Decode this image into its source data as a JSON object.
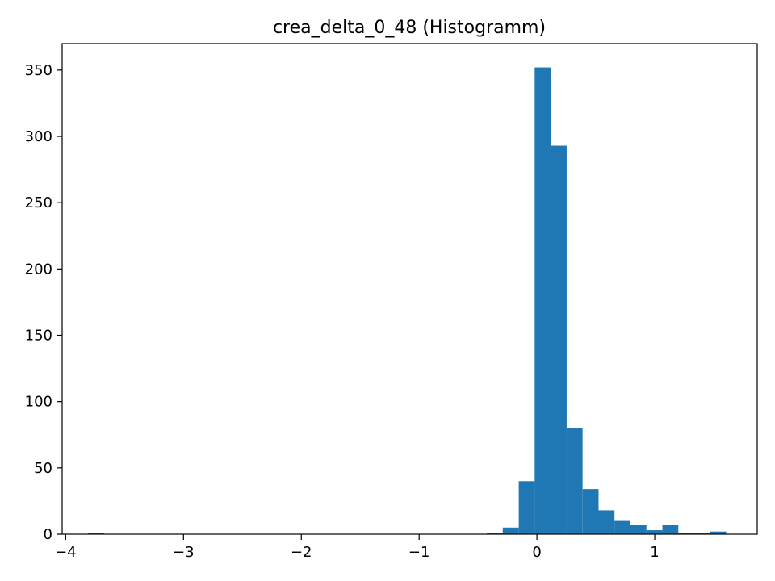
{
  "chart_data": {
    "type": "bar",
    "title": "crea_delta_0_48 (Histogramm)",
    "xlabel": "",
    "ylabel": "",
    "color": "#1f77b4",
    "xlim": [
      -4.03,
      1.87
    ],
    "ylim": [
      0,
      370
    ],
    "bin_width": 0.1354,
    "bins": [
      {
        "x0": -3.81,
        "count": 1
      },
      {
        "x0": -0.425,
        "count": 1
      },
      {
        "x0": -0.29,
        "count": 5
      },
      {
        "x0": -0.154,
        "count": 40
      },
      {
        "x0": -0.019,
        "count": 352
      },
      {
        "x0": 0.117,
        "count": 293
      },
      {
        "x0": 0.252,
        "count": 80
      },
      {
        "x0": 0.388,
        "count": 34
      },
      {
        "x0": 0.523,
        "count": 18
      },
      {
        "x0": 0.658,
        "count": 10
      },
      {
        "x0": 0.794,
        "count": 7
      },
      {
        "x0": 0.929,
        "count": 3
      },
      {
        "x0": 1.065,
        "count": 7
      },
      {
        "x0": 1.2,
        "count": 1
      },
      {
        "x0": 1.336,
        "count": 1
      },
      {
        "x0": 1.471,
        "count": 2
      }
    ],
    "x_ticks": [
      {
        "value": -4,
        "label": "−4"
      },
      {
        "value": -3,
        "label": "−3"
      },
      {
        "value": -2,
        "label": "−2"
      },
      {
        "value": -1,
        "label": "−1"
      },
      {
        "value": 0,
        "label": "0"
      },
      {
        "value": 1,
        "label": "1"
      }
    ],
    "y_ticks": [
      {
        "value": 0,
        "label": "0"
      },
      {
        "value": 50,
        "label": "50"
      },
      {
        "value": 100,
        "label": "100"
      },
      {
        "value": 150,
        "label": "150"
      },
      {
        "value": 200,
        "label": "200"
      },
      {
        "value": 250,
        "label": "250"
      },
      {
        "value": 300,
        "label": "300"
      },
      {
        "value": 350,
        "label": "350"
      }
    ],
    "grid": false,
    "legend": "none"
  }
}
